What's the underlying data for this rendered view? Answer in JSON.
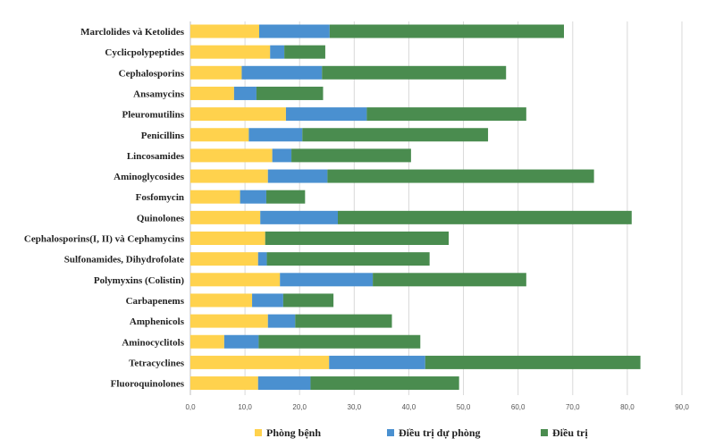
{
  "chart_data": {
    "type": "bar",
    "orientation": "horizontal",
    "stacked": true,
    "categories": [
      "Marclolides và Ketolides",
      "Cyclicpolypeptides",
      "Cephalosporins",
      "Ansamycins",
      "Pleuromutilins",
      "Penicillins",
      "Lincosamides",
      "Aminoglycosides",
      "Fosfomycin",
      "Quinolones",
      "Cephalosporins(I, II) và Cephamycins",
      "Sulfonamides, Dihydrofolate",
      "Polymyxins (Colistin)",
      "Carbapenems",
      "Amphenicols",
      "Aminocyclitols",
      "Tetracyclines",
      "Fluoroquinolones"
    ],
    "series": [
      {
        "name": "Phòng bệnh",
        "color": "#ffd24d",
        "values": [
          12.6,
          14.6,
          9.4,
          8.0,
          17.5,
          10.7,
          15.0,
          14.2,
          9.1,
          12.8,
          13.7,
          12.4,
          16.4,
          11.3,
          14.2,
          6.2,
          25.4,
          12.4
        ]
      },
      {
        "name": "Điều trị dự phòng",
        "color": "#4a90d0",
        "values": [
          12.9,
          2.6,
          14.7,
          4.1,
          14.8,
          9.8,
          3.5,
          10.9,
          4.8,
          14.2,
          0.0,
          1.6,
          17.0,
          5.7,
          5.0,
          6.3,
          17.6,
          9.6
        ]
      },
      {
        "name": "Điều trị",
        "color": "#4a8c4f",
        "values": [
          42.9,
          7.5,
          33.7,
          12.2,
          29.2,
          34.0,
          21.9,
          48.8,
          7.1,
          53.8,
          33.6,
          29.8,
          28.1,
          9.2,
          17.7,
          29.6,
          39.4,
          27.2
        ]
      }
    ],
    "xlim": [
      0,
      90
    ],
    "x_ticks": [
      "0,0",
      "10,0",
      "20,0",
      "30,0",
      "40,0",
      "50,0",
      "60,0",
      "70,0",
      "80,0",
      "90,0"
    ],
    "x_tick_values": [
      0,
      10,
      20,
      30,
      40,
      50,
      60,
      70,
      80,
      90
    ],
    "grid": true,
    "legend_position": "bottom",
    "title": "",
    "xlabel": "",
    "ylabel": ""
  }
}
